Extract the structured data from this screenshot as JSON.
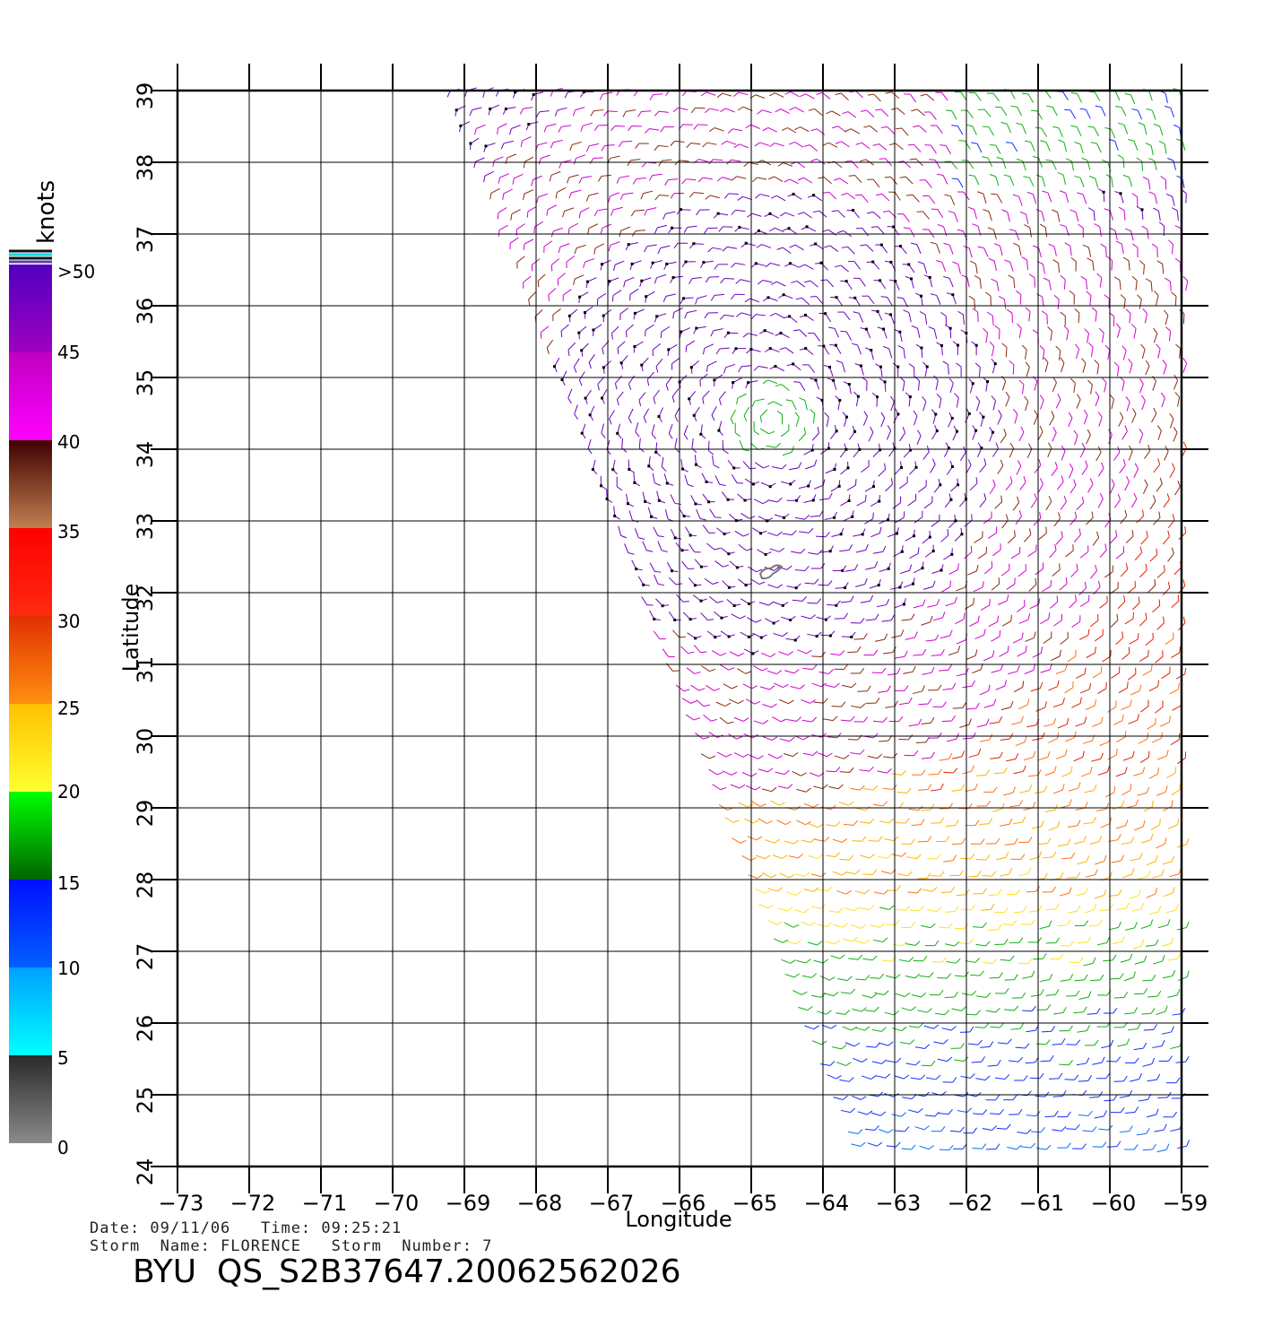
{
  "plot": {
    "x_label": "Longitude",
    "y_label": "Latitude",
    "units_label": "knots",
    "lon_range": [
      -73,
      -59
    ],
    "lat_range": [
      24,
      39
    ],
    "lon_ticks": [
      "−73",
      "−72",
      "−71",
      "−70",
      "−69",
      "−68",
      "−67",
      "−66",
      "−65",
      "−64",
      "−63",
      "−62",
      "−61",
      "−60",
      "−59"
    ],
    "lat_ticks": [
      "24",
      "25",
      "26",
      "27",
      "28",
      "29",
      "30",
      "31",
      "32",
      "33",
      "34",
      "35",
      "36",
      "37",
      "38",
      "39"
    ]
  },
  "legend": {
    "labels": [
      ">50",
      "45",
      "40",
      "35",
      "30",
      "25",
      "20",
      "15",
      "10",
      "5",
      "0"
    ],
    "bands": [
      {
        "from": 0,
        "to": 5,
        "colors": [
          "#8a8a8a",
          "#2a2a2a"
        ]
      },
      {
        "from": 5,
        "to": 10,
        "colors": [
          "#00ffff",
          "#00a0ff"
        ]
      },
      {
        "from": 10,
        "to": 15,
        "colors": [
          "#0060ff",
          "#0010ff"
        ]
      },
      {
        "from": 15,
        "to": 20,
        "colors": [
          "#006400",
          "#00ff00"
        ]
      },
      {
        "from": 20,
        "to": 25,
        "colors": [
          "#ffff30",
          "#ffc000"
        ]
      },
      {
        "from": 25,
        "to": 30,
        "colors": [
          "#ff9010",
          "#e03000"
        ]
      },
      {
        "from": 30,
        "to": 35,
        "colors": [
          "#ff2a10",
          "#ff0000"
        ]
      },
      {
        "from": 35,
        "to": 40,
        "colors": [
          "#c08050",
          "#400000"
        ]
      },
      {
        "from": 40,
        "to": 45,
        "colors": [
          "#ff00ff",
          "#c000c0"
        ]
      },
      {
        "from": 45,
        "to": 50,
        "colors": [
          "#a000c0",
          "#5000c0"
        ]
      }
    ]
  },
  "colors": {
    "grid": "#000000",
    "island_outline": "#777777"
  },
  "footer": {
    "date_line": "Date: 09/11/06   Time: 09:25:21",
    "storm_line": "Storm  Name: FLORENCE   Storm  Number: 7",
    "file_id": "BYU  QS_S2B37647.20062562026"
  }
}
